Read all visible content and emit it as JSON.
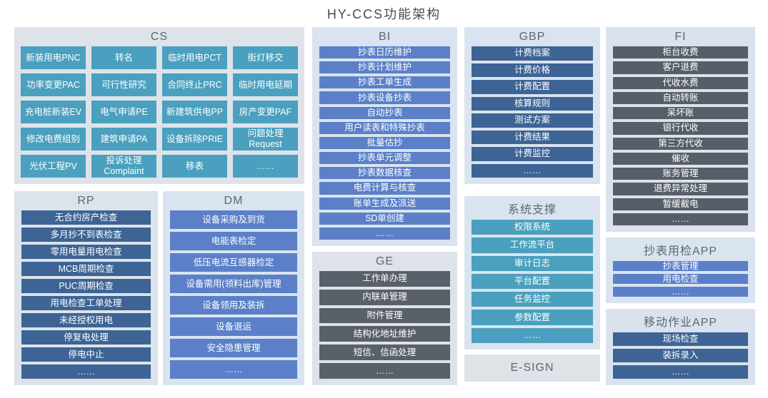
{
  "title": "HY-CCS功能架构",
  "panels": {
    "cs": {
      "title": "CS",
      "bg": "#dde3e9",
      "button_color": "#4AA0BE",
      "items": [
        "新装用电PNC",
        "转名",
        "临时用电PCT",
        "街灯移交",
        "功率变更PAC",
        "可行性研究",
        "合同终止PRC",
        "临时用电延期",
        "充电桩新装EV",
        "电气申请PE",
        "新建筑供电PP",
        "房产变更PAF",
        "修改电费组别",
        "建筑申请PA",
        "设备拆除PRIE",
        "问题处理\nRequest",
        "光伏工程PV",
        "投诉处理\nComplaint",
        "移表",
        "……"
      ]
    },
    "rp": {
      "title": "RP",
      "bg": "#dce3ea",
      "button_color": "#3D6495",
      "items": [
        "无合约房产检查",
        "多月抄不到表检查",
        "零用电量用电检查",
        "MCB周期检查",
        "PUC周期检查",
        "用电检查工单处理",
        "未经授权用电",
        "停复电处理",
        "停电中止",
        "……"
      ]
    },
    "dm": {
      "title": "DM",
      "bg": "#d9e4f0",
      "button_color": "#5B80C8",
      "items": [
        "设备采购及到货",
        "电能表检定",
        "低压电流互感器检定",
        "设备需用(领料出库)管理",
        "设备领用及装拆",
        "设备退运",
        "安全隐患管理",
        "……"
      ]
    },
    "bi": {
      "title": "BI",
      "bg": "#d9e4f0",
      "button_color": "#5B80C8",
      "items": [
        "抄表日历维护",
        "抄表计划维护",
        "抄表工单生成",
        "抄表设备抄表",
        "自动抄表",
        "用户读表和特殊抄表",
        "批量估抄",
        "抄表单元调整",
        "抄表数据核查",
        "电费计算与核查",
        "账单生成及派送",
        "SD单创建",
        "……"
      ]
    },
    "ge": {
      "title": "GE",
      "bg": "#dde3e9",
      "button_color": "#59606A",
      "items": [
        "工作单办理",
        "内联单管理",
        "附件管理",
        "结构化地址维护",
        "短信、信函处理",
        "……"
      ]
    },
    "gbp": {
      "title": "GBP",
      "bg": "#d9e4f0",
      "button_color": "#3D6495",
      "items": [
        "计费档案",
        "计费价格",
        "计费配置",
        "核算规则",
        "测试方案",
        "计费结果",
        "计费监控",
        "……"
      ]
    },
    "sys": {
      "title": "系统支撑",
      "bg": "#d9e4f0",
      "button_color": "#4AA0BE",
      "items": [
        "权限系统",
        "工作流平台",
        "审计日志",
        "平台配置",
        "任务监控",
        "参数配置",
        "……"
      ]
    },
    "esign": {
      "title": "E-SIGN",
      "bg": "#dfe3e9"
    },
    "fi": {
      "title": "FI",
      "bg": "#d9e2ed",
      "button_color": "#575E68",
      "items": [
        "柜台收费",
        "客户退费",
        "代收水费",
        "自动转账",
        "呆坏账",
        "银行代收",
        "第三方代收",
        "催收",
        "账务管理",
        "退费异常处理",
        "暂缓截电",
        "……"
      ]
    },
    "cbapp": {
      "title": "抄表用检APP",
      "bg": "#d9e4f0",
      "button_color": "#5B80C8",
      "items": [
        "抄表管理",
        "用电检查",
        "……"
      ]
    },
    "ydapp": {
      "title": "移动作业APP",
      "bg": "#d9e2ed",
      "button_color": "#3D6495",
      "items": [
        "现场检查",
        "装拆录入",
        "……"
      ]
    }
  }
}
